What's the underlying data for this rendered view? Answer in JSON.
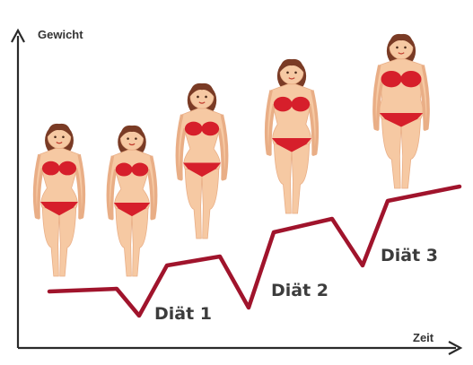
{
  "axes": {
    "y_label": "Gewicht",
    "x_label": "Zeit"
  },
  "diets": [
    {
      "label": "Diät 1"
    },
    {
      "label": "Diät 2"
    },
    {
      "label": "Diät 3"
    }
  ],
  "figures": [
    {
      "name": "woman-figure-1",
      "body_scale": 1.0
    },
    {
      "name": "woman-figure-2",
      "body_scale": 0.9
    },
    {
      "name": "woman-figure-3",
      "body_scale": 0.95
    },
    {
      "name": "woman-figure-4",
      "body_scale": 1.15
    },
    {
      "name": "woman-figure-5",
      "body_scale": 1.55
    }
  ],
  "colors": {
    "axis": "#2a2a2a",
    "curve": "#a0142c",
    "skin": "#f6c9a3",
    "skin_shade": "#e9ae86",
    "hair": "#7a3b25",
    "bikini": "#d61f2b"
  }
}
